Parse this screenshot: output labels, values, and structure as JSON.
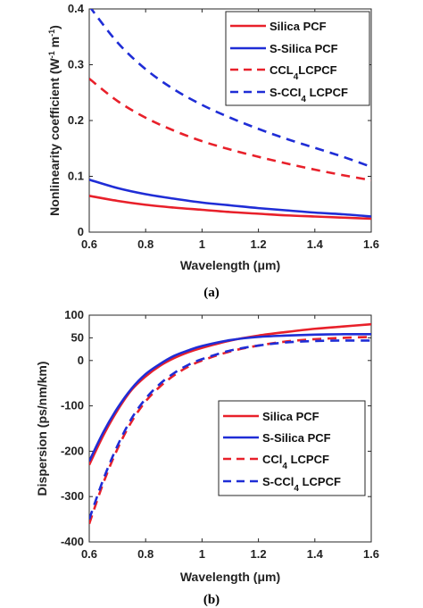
{
  "chart_data": [
    {
      "type": "line",
      "panel_label": "(a)",
      "xlabel": "Wavelength (μm)",
      "ylabel": "Nonlinearity coefficient (W⁻¹ m⁻¹)",
      "xlim": [
        0.6,
        1.6
      ],
      "ylim": [
        0,
        0.4
      ],
      "xticks": [
        "0.6",
        "0.8",
        "1",
        "1.2",
        "1.4",
        "1.6"
      ],
      "yticks": [
        "0",
        "0.1",
        "0.2",
        "0.3",
        "0.4"
      ],
      "legend_position": "top-right",
      "x": [
        0.6,
        0.7,
        0.8,
        0.9,
        1.0,
        1.1,
        1.2,
        1.3,
        1.4,
        1.5,
        1.6
      ],
      "series": [
        {
          "name": "Silica PCF",
          "color": "#e8202a",
          "dash": "solid",
          "values": [
            0.065,
            0.056,
            0.049,
            0.044,
            0.04,
            0.036,
            0.033,
            0.03,
            0.028,
            0.026,
            0.024
          ]
        },
        {
          "name": "S-Silica PCF",
          "color": "#1f2dd6",
          "dash": "solid",
          "values": [
            0.094,
            0.079,
            0.068,
            0.06,
            0.053,
            0.048,
            0.043,
            0.039,
            0.035,
            0.032,
            0.028
          ]
        },
        {
          "name": "CCL4LCPCF",
          "color": "#e8202a",
          "dash": "dashed",
          "values": [
            0.275,
            0.235,
            0.205,
            0.182,
            0.163,
            0.148,
            0.135,
            0.123,
            0.112,
            0.102,
            0.093
          ]
        },
        {
          "name": "S-CCI4 LCPCF",
          "color": "#1f2dd6",
          "dash": "dashed",
          "values": [
            0.405,
            0.34,
            0.292,
            0.256,
            0.228,
            0.205,
            0.185,
            0.167,
            0.151,
            0.135,
            0.117
          ]
        }
      ]
    },
    {
      "type": "line",
      "panel_label": "(b)",
      "xlabel": "Wavelength (μm)",
      "ylabel": "Dispersion (ps/nm/km)",
      "xlim": [
        0.6,
        1.6
      ],
      "ylim": [
        -400,
        100
      ],
      "xticks": [
        "0.6",
        "0.8",
        "1",
        "1.2",
        "1.4",
        "1.6"
      ],
      "yticks": [
        "-400",
        "-300",
        "-200",
        "-100",
        "0",
        "50",
        "100"
      ],
      "legend_position": "center-right",
      "x": [
        0.6,
        0.65,
        0.7,
        0.75,
        0.8,
        0.85,
        0.9,
        0.95,
        1.0,
        1.1,
        1.2,
        1.3,
        1.4,
        1.5,
        1.6
      ],
      "series": [
        {
          "name": "Silica PCF",
          "color": "#e8202a",
          "dash": "solid",
          "values": [
            -230,
            -165,
            -110,
            -65,
            -35,
            -12,
            5,
            18,
            28,
            44,
            55,
            63,
            70,
            75,
            80
          ]
        },
        {
          "name": "S-Silica PCF",
          "color": "#1f2dd6",
          "dash": "solid",
          "values": [
            -222,
            -158,
            -105,
            -62,
            -30,
            -8,
            10,
            22,
            32,
            45,
            52,
            55,
            57,
            58,
            58
          ]
        },
        {
          "name": "CCl4 LCPCF",
          "color": "#e8202a",
          "dash": "dashed",
          "values": [
            -360,
            -270,
            -195,
            -135,
            -90,
            -58,
            -33,
            -14,
            0,
            20,
            33,
            42,
            47,
            50,
            52
          ]
        },
        {
          "name": "S-CCl4 LCPCF",
          "color": "#1f2dd6",
          "dash": "dashed",
          "values": [
            -350,
            -262,
            -188,
            -128,
            -84,
            -52,
            -28,
            -10,
            3,
            22,
            33,
            40,
            43,
            44,
            44
          ]
        }
      ]
    }
  ]
}
